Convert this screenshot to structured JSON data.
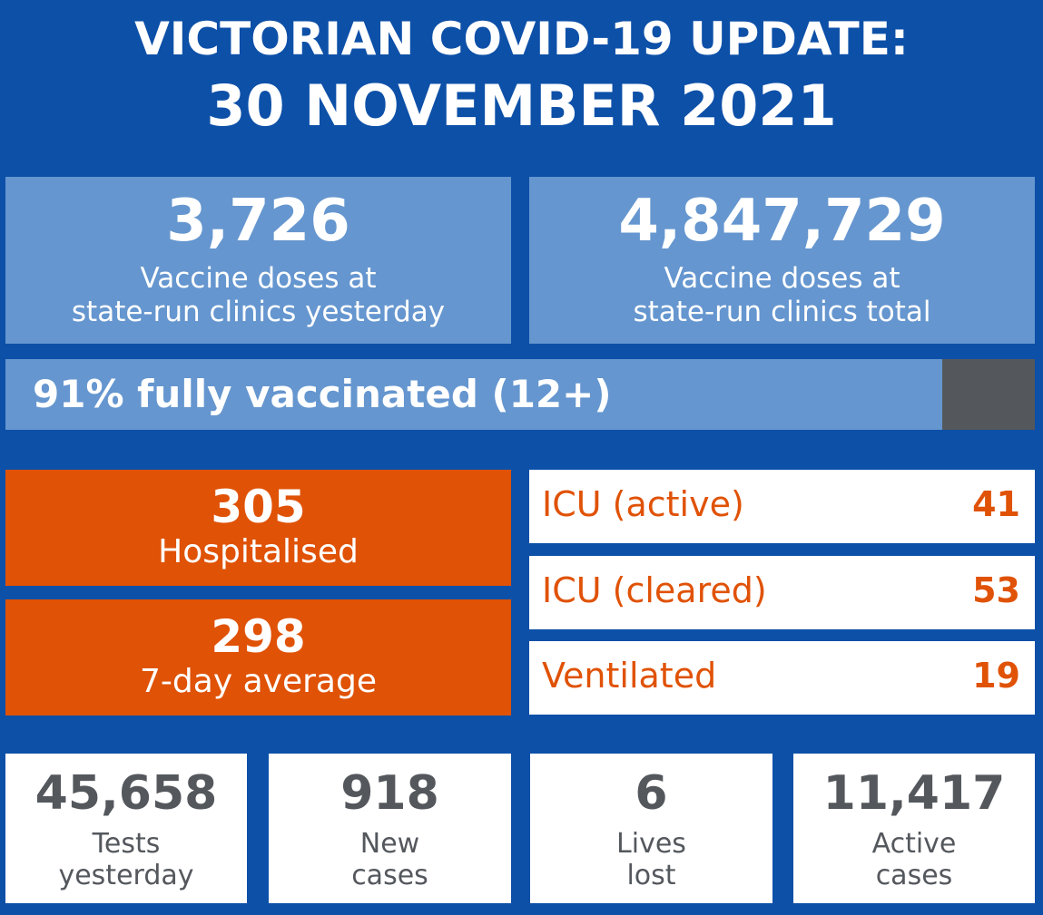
{
  "header": {
    "line1": "VICTORIAN COVID-19 UPDATE:",
    "line2": "30 NOVEMBER 2021"
  },
  "vaccine": {
    "yesterday": {
      "value": "3,726",
      "label_line1": "Vaccine doses at",
      "label_line2": "state-run clinics yesterday"
    },
    "total": {
      "value": "4,847,729",
      "label_line1": "Vaccine doses at",
      "label_line2": "state-run clinics total"
    },
    "fully_vaccinated": {
      "label": "91% fully vaccinated (12+)",
      "percent": 91
    }
  },
  "hospital": {
    "hospitalised": {
      "value": "305",
      "label": "Hospitalised"
    },
    "average": {
      "value": "298",
      "label": "7-day average"
    }
  },
  "icu": [
    {
      "label": "ICU (active)",
      "value": "41"
    },
    {
      "label": "ICU (cleared)",
      "value": "53"
    },
    {
      "label": "Ventilated",
      "value": "19"
    }
  ],
  "stats": [
    {
      "value": "45,658",
      "label_line1": "Tests",
      "label_line2": "yesterday"
    },
    {
      "value": "918",
      "label_line1": "New",
      "label_line2": "cases"
    },
    {
      "value": "6",
      "label_line1": "Lives",
      "label_line2": "lost"
    },
    {
      "value": "11,417",
      "label_line1": "Active",
      "label_line2": "cases"
    }
  ],
  "colors": {
    "background": "#0d50a8",
    "light_blue": "#6596cf",
    "orange": "#e05206",
    "grey": "#54585d",
    "white": "#ffffff"
  }
}
